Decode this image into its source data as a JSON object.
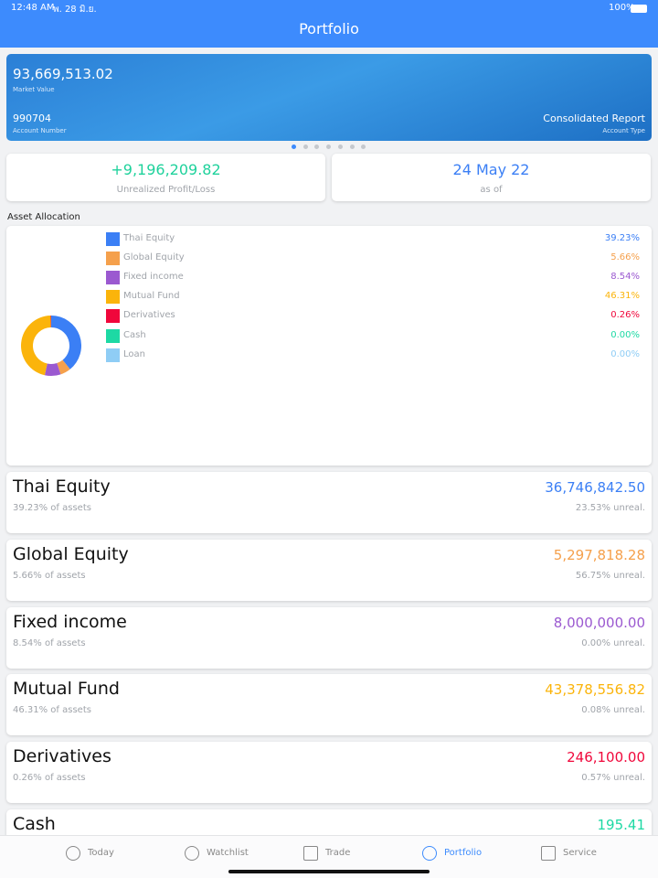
{
  "status_bar": {
    "time": "12:48 AM",
    "date": "พ. 28 มิ.ย.",
    "battery": "100%"
  },
  "header": {
    "title": "Portfolio"
  },
  "summary_card": {
    "market_value": "93,669,513.02",
    "market_value_label": "Market Value",
    "account_number": "990704",
    "account_number_label": "Account Number",
    "account_type": "Consolidated Report",
    "account_type_label": "Account Type"
  },
  "stats": [
    {
      "value": "+9,196,209.82",
      "label": "Unrealized Profit/Loss",
      "color": "#1fd29c"
    },
    {
      "value": "24 May 22",
      "label": "as of",
      "color": "#3b7ff5"
    }
  ],
  "section_title": "Asset Allocation",
  "chart_data": {
    "type": "donut",
    "categories": [
      "Thai Equity",
      "Global Equity",
      "Fixed income",
      "Mutual Fund",
      "Derivatives",
      "Cash",
      "Loan"
    ],
    "values": [
      39.23,
      5.66,
      8.54,
      46.31,
      0.26,
      0,
      0
    ],
    "value_labels": [
      "39.23%",
      "5.66%",
      "8.54%",
      "46.31%",
      "0.26%",
      "0.00%",
      "0.00%"
    ],
    "colors": [
      "#3b7ff5",
      "#f5a04c",
      "#9b59d0",
      "#fbb40b",
      "#f0073b",
      "#1dd9a4",
      "#8fcdf5"
    ]
  },
  "assets": [
    {
      "name": "Thai Equity",
      "value": "36,746,842.50",
      "share": "39.23% of assets",
      "unrealized": "23.53% unreal.",
      "color": "#3b7ff5"
    },
    {
      "name": "Global Equity",
      "value": "5,297,818.28",
      "share": "5.66% of assets",
      "unrealized": "56.75% unreal.",
      "color": "#f5a04c"
    },
    {
      "name": "Fixed income",
      "value": "8,000,000.00",
      "share": "8.54% of assets",
      "unrealized": "0.00% unreal.",
      "color": "#9b59d0"
    },
    {
      "name": "Mutual Fund",
      "value": "43,378,556.82",
      "share": "46.31% of assets",
      "unrealized": "0.08% unreal.",
      "color": "#fbb40b"
    },
    {
      "name": "Derivatives",
      "value": "246,100.00",
      "share": "0.26% of assets",
      "unrealized": "0.57% unreal.",
      "color": "#f0073b"
    },
    {
      "name": "Cash",
      "value": "195.41",
      "color": "#1dd9a4"
    }
  ],
  "tabs": [
    {
      "label": "Today"
    },
    {
      "label": "Watchlist"
    },
    {
      "label": "Trade"
    },
    {
      "label": "Portfolio",
      "active": true
    },
    {
      "label": "Service"
    }
  ]
}
